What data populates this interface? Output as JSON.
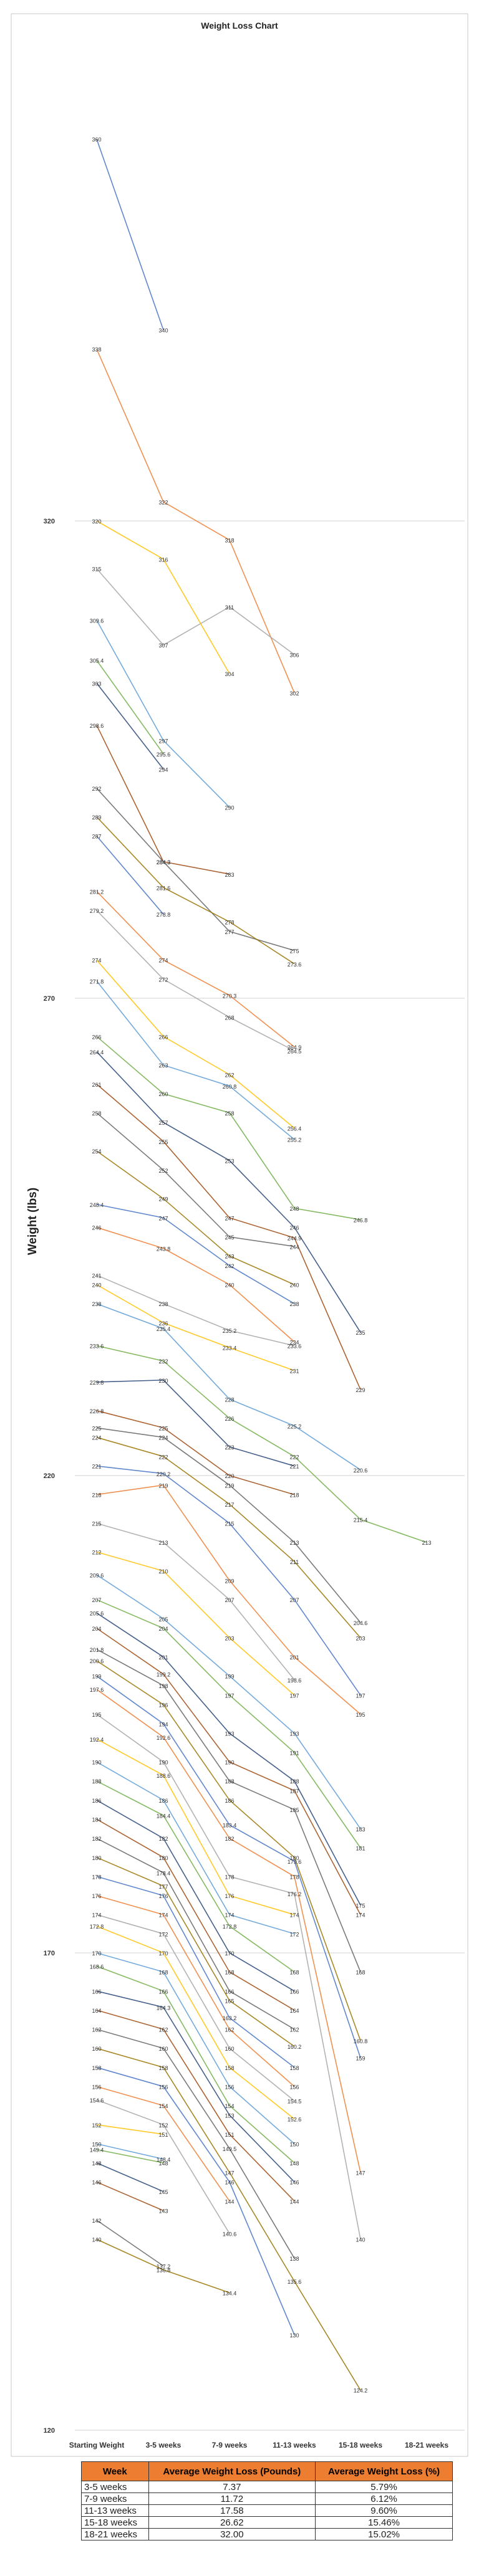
{
  "chart_data": {
    "type": "line",
    "title": "Weight Loss Chart",
    "ylabel": "Weight (lbs)",
    "xlabel": "",
    "categories": [
      "Starting Weight",
      "3-5 weeks",
      "7-9 weeks",
      "11-13 weeks",
      "15-18 weeks",
      "18-21 weeks"
    ],
    "ylim": [
      120,
      370
    ],
    "yticks": [
      120,
      170,
      220,
      270,
      320
    ],
    "grid": true,
    "colors": [
      "#4472c4",
      "#ed7d31",
      "#a5a5a5",
      "#ffc000",
      "#5b9bd5",
      "#70ad47",
      "#264478",
      "#9e480e",
      "#636363",
      "#997300"
    ],
    "series": [
      {
        "values": [
          360,
          340,
          null,
          null,
          null,
          null
        ]
      },
      {
        "values": [
          338,
          322,
          318,
          302,
          null,
          null
        ]
      },
      {
        "values": [
          315,
          307,
          311,
          306,
          null,
          null
        ]
      },
      {
        "values": [
          320,
          316,
          304,
          null,
          null,
          null
        ]
      },
      {
        "values": [
          309.6,
          297,
          290,
          null,
          null,
          null
        ]
      },
      {
        "values": [
          305.4,
          295.6,
          null,
          null,
          null,
          null
        ]
      },
      {
        "values": [
          303,
          294,
          null,
          null,
          null,
          null
        ]
      },
      {
        "values": [
          298.6,
          284.3,
          283,
          null,
          null,
          null
        ]
      },
      {
        "values": [
          292,
          284.3,
          277,
          275,
          null,
          null
        ]
      },
      {
        "values": [
          289,
          281.6,
          278,
          273.6,
          null,
          null
        ]
      },
      {
        "values": [
          287,
          278.8,
          null,
          null,
          null,
          null
        ]
      },
      {
        "values": [
          281.2,
          274,
          270.3,
          264.9,
          null,
          null
        ]
      },
      {
        "values": [
          279.2,
          272,
          268,
          264.5,
          null,
          null
        ]
      },
      {
        "values": [
          274,
          266,
          262,
          256.4,
          null,
          null
        ]
      },
      {
        "values": [
          271.8,
          263,
          260.8,
          255.2,
          null,
          null
        ]
      },
      {
        "values": [
          266,
          260,
          258,
          248,
          246.8,
          null
        ]
      },
      {
        "values": [
          264.4,
          257,
          253,
          246,
          235,
          null
        ]
      },
      {
        "values": [
          261,
          255,
          247,
          244.9,
          229,
          null
        ]
      },
      {
        "values": [
          258,
          252,
          245,
          244,
          null,
          null
        ]
      },
      {
        "values": [
          254,
          249,
          243,
          240,
          null,
          null
        ]
      },
      {
        "values": [
          248.4,
          247,
          242,
          238,
          null,
          null
        ]
      },
      {
        "values": [
          246,
          243.8,
          240,
          234,
          null,
          null
        ]
      },
      {
        "values": [
          241,
          238,
          235.2,
          233.6,
          null,
          null
        ]
      },
      {
        "values": [
          240,
          236,
          233.4,
          231,
          null,
          null
        ]
      },
      {
        "values": [
          238,
          235.4,
          228,
          225.2,
          220.6,
          null
        ]
      },
      {
        "values": [
          233.6,
          232,
          226,
          222,
          215.4,
          213
        ]
      },
      {
        "values": [
          229.8,
          230,
          223,
          221,
          null,
          null
        ]
      },
      {
        "values": [
          226.8,
          225,
          220,
          218,
          null,
          null
        ]
      },
      {
        "values": [
          225,
          224,
          219,
          213,
          204.6,
          null
        ]
      },
      {
        "values": [
          224,
          222,
          217,
          211,
          203,
          null
        ]
      },
      {
        "values": [
          221,
          220.2,
          215,
          207,
          197,
          null
        ]
      },
      {
        "values": [
          218,
          219,
          209,
          201,
          195,
          null
        ]
      },
      {
        "values": [
          215,
          213,
          207,
          198.6,
          null,
          null
        ]
      },
      {
        "values": [
          212,
          210,
          203,
          197,
          null,
          null
        ]
      },
      {
        "values": [
          209.6,
          205,
          199,
          193,
          183,
          null
        ]
      },
      {
        "values": [
          207,
          204,
          197,
          191,
          181,
          null
        ]
      },
      {
        "values": [
          205.6,
          201,
          193,
          188,
          175,
          null
        ]
      },
      {
        "values": [
          204,
          199.2,
          190,
          187,
          174,
          null
        ]
      },
      {
        "values": [
          201.8,
          198,
          188,
          185,
          168,
          null
        ]
      },
      {
        "values": [
          200.6,
          196,
          186,
          180,
          160.8,
          null
        ]
      },
      {
        "values": [
          199,
          194,
          183.4,
          179.6,
          159,
          null
        ]
      },
      {
        "values": [
          197.6,
          192.6,
          182,
          178,
          147,
          null
        ]
      },
      {
        "values": [
          195,
          190,
          178,
          176.2,
          140,
          null
        ]
      },
      {
        "values": [
          192.4,
          188.6,
          176,
          174,
          null,
          null
        ]
      },
      {
        "values": [
          190,
          186,
          174,
          172,
          null,
          null
        ]
      },
      {
        "values": [
          188,
          184.4,
          172.8,
          168,
          null,
          null
        ]
      },
      {
        "values": [
          186,
          182,
          170,
          166,
          null,
          null
        ]
      },
      {
        "values": [
          184,
          180,
          168,
          164,
          null,
          null
        ]
      },
      {
        "values": [
          182,
          178.4,
          166,
          162,
          null,
          null
        ]
      },
      {
        "values": [
          180,
          177,
          165,
          160.2,
          null,
          null
        ]
      },
      {
        "values": [
          178,
          176,
          163.2,
          158,
          null,
          null
        ]
      },
      {
        "values": [
          176,
          174,
          162,
          156,
          null,
          null
        ]
      },
      {
        "values": [
          174,
          172,
          160,
          154.5,
          null,
          null
        ]
      },
      {
        "values": [
          172.8,
          170,
          158,
          152.6,
          null,
          null
        ]
      },
      {
        "values": [
          170,
          168,
          156,
          150,
          null,
          null
        ]
      },
      {
        "values": [
          168.6,
          166,
          154,
          148,
          null,
          null
        ]
      },
      {
        "values": [
          166,
          164.3,
          153,
          146,
          null,
          null
        ]
      },
      {
        "values": [
          164,
          162,
          151,
          144,
          null,
          null
        ]
      },
      {
        "values": [
          162,
          160,
          149.5,
          138,
          null,
          null
        ]
      },
      {
        "values": [
          160,
          158,
          147,
          135.6,
          124.2,
          null
        ]
      },
      {
        "values": [
          158,
          156,
          146,
          130,
          null,
          null
        ]
      },
      {
        "values": [
          156,
          154,
          144,
          null,
          null,
          null
        ]
      },
      {
        "values": [
          154.6,
          152,
          140.6,
          null,
          null,
          null
        ]
      },
      {
        "values": [
          152,
          151,
          null,
          null,
          null,
          null
        ]
      },
      {
        "values": [
          150,
          148.4,
          null,
          null,
          null,
          null
        ]
      },
      {
        "values": [
          149.4,
          148,
          null,
          null,
          null,
          null
        ]
      },
      {
        "values": [
          148,
          145,
          null,
          null,
          null,
          null
        ]
      },
      {
        "values": [
          146,
          143,
          null,
          null,
          null,
          null
        ]
      },
      {
        "values": [
          142,
          137.2,
          null,
          null,
          null,
          null
        ]
      },
      {
        "values": [
          140,
          136.8,
          134.4,
          null,
          null,
          null
        ]
      }
    ]
  },
  "table": {
    "headers": [
      "Week",
      "Average Weight Loss (Pounds)",
      "Average Weight Loss (%)"
    ],
    "rows": [
      [
        "3-5 weeks",
        "7.37",
        "5.79%"
      ],
      [
        "7-9 weeks",
        "11.72",
        "6.12%"
      ],
      [
        "11-13 weeks",
        "17.58",
        "9.60%"
      ],
      [
        "15-18 weeks",
        "26.62",
        "15.46%"
      ],
      [
        "18-21 weeks",
        "32.00",
        "15.02%"
      ]
    ]
  }
}
